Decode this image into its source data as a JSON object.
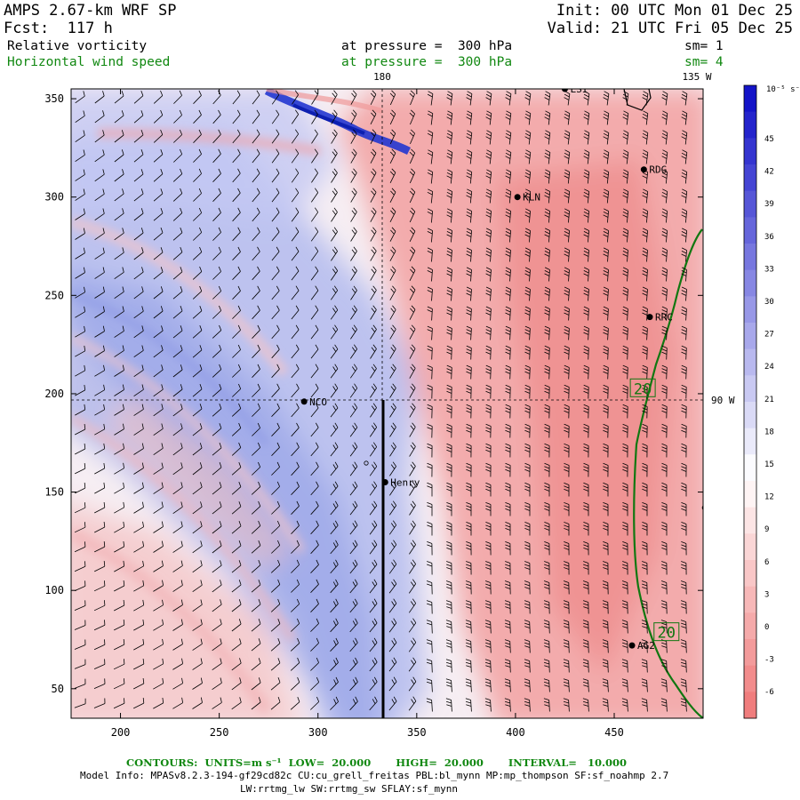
{
  "header": {
    "model": "AMPS 2.67-km WRF SP",
    "init": "Init: 00 UTC Mon 01 Dec 25",
    "fcst": "Fcst:  117 h",
    "valid": "Valid: 21 UTC Fri 05 Dec 25",
    "field1_name": "Relative vorticity",
    "field1_level": "at pressure =  300 hPa",
    "field1_sm": "sm= 1",
    "field2_name": "Horizontal wind speed",
    "field2_level": "at pressure =  300 hPa",
    "field2_sm": "sm= 4"
  },
  "map_labels": {
    "lon_180": "180",
    "lon_135w": "135 W",
    "lon_90w": "90 W"
  },
  "stations": [
    {
      "name": "LSI",
      "x": 425,
      "y": 355
    },
    {
      "name": "RDG",
      "x": 465,
      "y": 314
    },
    {
      "name": "KLN",
      "x": 401,
      "y": 300
    },
    {
      "name": "RRC",
      "x": 468,
      "y": 239
    },
    {
      "name": "NCO",
      "x": 293,
      "y": 196
    },
    {
      "name": "Henry",
      "x": 334,
      "y": 155
    },
    {
      "name": "AG2",
      "x": 459,
      "y": 72
    },
    {
      "name": "",
      "x": 496,
      "y": 142
    }
  ],
  "contour_labels": [
    {
      "text": "20",
      "x": 464,
      "y": 203
    },
    {
      "text": "20",
      "x": 476,
      "y": 79
    }
  ],
  "axes": {
    "x_ticks": [
      "200",
      "250",
      "300",
      "350",
      "400",
      "450"
    ],
    "x_values": [
      200,
      250,
      300,
      350,
      400,
      450
    ],
    "y_ticks": [
      "50",
      "100",
      "150",
      "200",
      "250",
      "300",
      "350"
    ],
    "y_values": [
      50,
      100,
      150,
      200,
      250,
      300,
      350
    ],
    "x_range": [
      175,
      495
    ],
    "y_range": [
      35,
      355
    ]
  },
  "colorbar": {
    "unit": "10⁻⁵ s⁻¹",
    "labels": [
      "45",
      "42",
      "39",
      "36",
      "33",
      "30",
      "27",
      "24",
      "21",
      "18",
      "15",
      "12",
      "9",
      "6",
      "3",
      "0",
      "-3",
      "-6"
    ],
    "colors": {
      "strong_positive": "#1f1fe0",
      "neutral": "#ffffff",
      "negative": "#f08080"
    }
  },
  "footer": {
    "contours": "CONTOURS:  UNITS=m s⁻¹  LOW=  20.000       HIGH=  20.000       INTERVAL=   10.000",
    "model_info": "Model Info: MPASv8.2.3-194-gf29cd82c CU:cu_grell_freitas PBL:bl_mynn MP:mp_thompson SF:sf_noahmp 2.7",
    "model_info2": "LW:rrtmg_lw SW:rrtmg_sw SFLAY:sf_mynn"
  }
}
